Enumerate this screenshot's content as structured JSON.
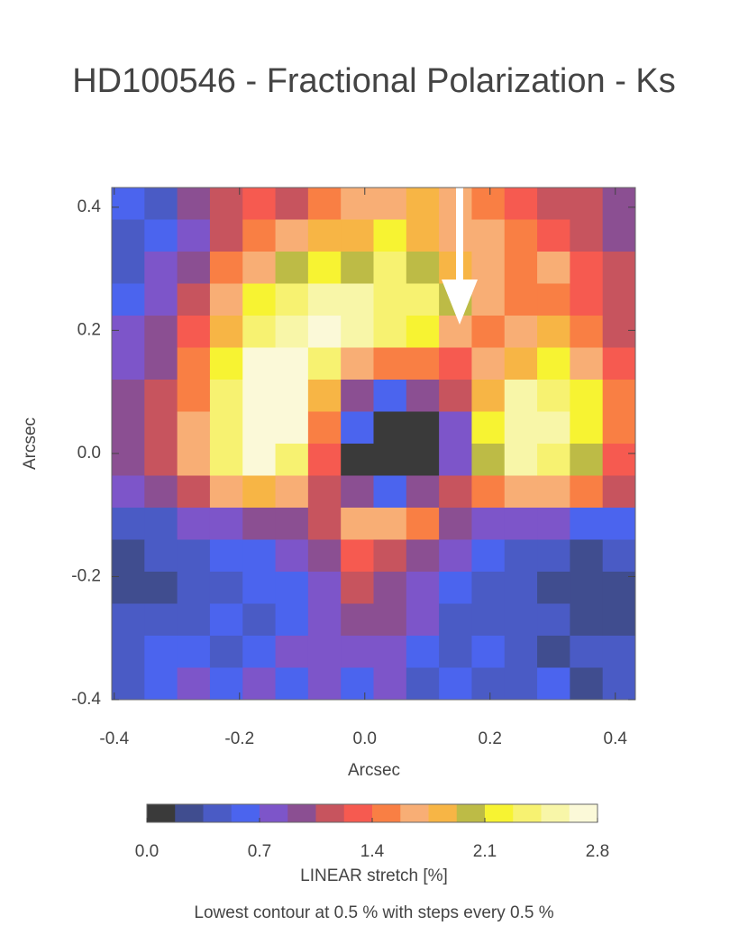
{
  "chart_data": {
    "type": "heatmap",
    "title": "HD100546 - Fractional Polarization - Ks",
    "xlabel": "Arcsec",
    "ylabel": "Arcsec",
    "xlim": [
      -0.404,
      0.432
    ],
    "ylim": [
      -0.4,
      0.432
    ],
    "xticks": [
      -0.4,
      -0.2,
      {
        "value": 0,
        "label": "0.0"
      },
      0.2,
      0.4
    ],
    "yticks": [
      -0.4,
      -0.2,
      {
        "value": 0,
        "label": "0.0"
      },
      0.2,
      0.4
    ],
    "z": [
      [
        0.6,
        0.5,
        0.9,
        1.1,
        1.3,
        1.2,
        1.4,
        1.7,
        1.6,
        1.9,
        1.6,
        1.5,
        1.3,
        1.2,
        1.1,
        0.9
      ],
      [
        0.5,
        0.6,
        0.8,
        1.2,
        1.5,
        1.6,
        1.8,
        1.9,
        2.2,
        1.8,
        1.7,
        1.6,
        1.4,
        1.3,
        1.2,
        1.0
      ],
      [
        0.5,
        0.7,
        0.9,
        1.4,
        1.7,
        2.0,
        2.2,
        2.0,
        2.3,
        2.0,
        1.9,
        1.7,
        1.5,
        1.6,
        1.3,
        1.1
      ],
      [
        0.6,
        0.8,
        1.1,
        1.6,
        2.1,
        2.3,
        2.5,
        2.6,
        2.4,
        2.3,
        2.0,
        1.6,
        1.5,
        1.4,
        1.3,
        1.1
      ],
      [
        0.7,
        0.9,
        1.3,
        1.8,
        2.4,
        2.6,
        2.7,
        2.6,
        2.4,
        2.2,
        1.7,
        1.4,
        1.6,
        1.9,
        1.5,
        1.2
      ],
      [
        0.8,
        1.0,
        1.4,
        2.1,
        2.7,
        2.8,
        2.4,
        1.6,
        1.4,
        1.5,
        1.3,
        1.6,
        1.8,
        2.1,
        1.7,
        1.3
      ],
      [
        0.9,
        1.1,
        1.5,
        2.3,
        2.8,
        2.8,
        1.9,
        0.9,
        0.6,
        0.9,
        1.1,
        1.9,
        2.5,
        2.4,
        2.2,
        1.4
      ],
      [
        0.9,
        1.1,
        1.6,
        2.4,
        2.8,
        2.7,
        1.5,
        0.6,
        0.0,
        0.0,
        0.8,
        2.1,
        2.6,
        2.5,
        2.2,
        1.4
      ],
      [
        0.9,
        1.2,
        1.6,
        2.3,
        2.7,
        2.4,
        1.3,
        0.0,
        0.0,
        0.0,
        0.7,
        2.0,
        2.5,
        2.3,
        2.0,
        1.3
      ],
      [
        0.7,
        0.9,
        1.2,
        1.6,
        1.8,
        1.6,
        1.2,
        0.9,
        0.6,
        0.9,
        1.2,
        1.5,
        1.7,
        1.6,
        1.4,
        1.1
      ],
      [
        0.5,
        0.5,
        0.7,
        0.8,
        0.9,
        1.0,
        1.2,
        1.6,
        1.7,
        1.4,
        1.0,
        0.8,
        0.7,
        0.7,
        0.6,
        0.6
      ],
      [
        0.3,
        0.4,
        0.5,
        0.6,
        0.6,
        0.7,
        1.0,
        1.3,
        1.2,
        1.0,
        0.7,
        0.6,
        0.5,
        0.4,
        0.3,
        0.4
      ],
      [
        0.2,
        0.3,
        0.5,
        0.5,
        0.6,
        0.6,
        0.8,
        1.1,
        1.0,
        0.8,
        0.6,
        0.5,
        0.4,
        0.3,
        0.2,
        0.3
      ],
      [
        0.4,
        0.5,
        0.5,
        0.6,
        0.5,
        0.6,
        0.7,
        0.9,
        0.9,
        0.7,
        0.5,
        0.5,
        0.5,
        0.4,
        0.3,
        0.2
      ],
      [
        0.5,
        0.6,
        0.6,
        0.5,
        0.6,
        0.7,
        0.8,
        0.7,
        0.8,
        0.6,
        0.5,
        0.6,
        0.4,
        0.3,
        0.4,
        0.5
      ],
      [
        0.5,
        0.6,
        0.7,
        0.6,
        0.7,
        0.6,
        0.7,
        0.6,
        0.7,
        0.5,
        0.6,
        0.5,
        0.5,
        0.6,
        0.3,
        0.5
      ]
    ],
    "clim": [
      0,
      2.8
    ],
    "colors": [
      "#3a3a3a",
      "#404d8f",
      "#4a5bc5",
      "#4b64ee",
      "#7d55c9",
      "#8b4f92",
      "#c7545e",
      "#f65a50",
      "#f97f44",
      "#f8ae75",
      "#f7b545",
      "#bdbb46",
      "#f7f332",
      "#f7f271",
      "#f8f6a8",
      "#fbf9d8"
    ],
    "cticks": [
      {
        "value": 0,
        "label": "0.0"
      },
      0.7,
      1.4,
      2.1,
      2.8
    ],
    "colorbar_label": "LINEAR stretch [%]",
    "note": "Lowest contour at 0.5 % with steps every 0.5 %"
  }
}
